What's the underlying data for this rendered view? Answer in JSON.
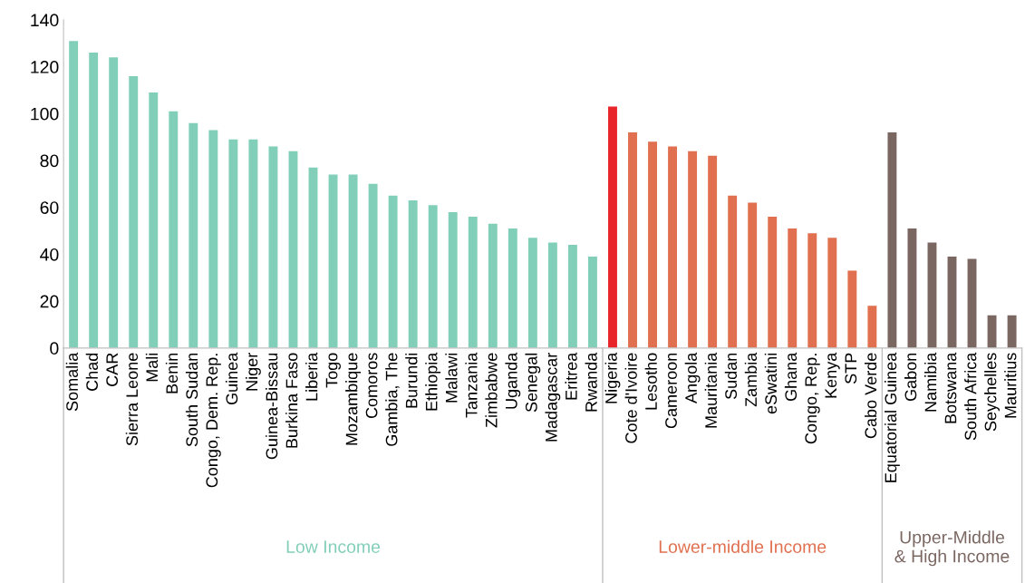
{
  "chart_data": {
    "type": "bar",
    "categories": [
      "Somalia",
      "Chad",
      "CAR",
      "Sierra Leone",
      "Mali",
      "Benin",
      "South Sudan",
      "Congo, Dem. Rep.",
      "Guinea",
      "Niger",
      "Guinea-Bissau",
      "Burkina Faso",
      "Liberia",
      "Togo",
      "Mozambique",
      "Comoros",
      "Gambia, The",
      "Burundi",
      "Ethiopia",
      "Malawi",
      "Tanzania",
      "Zimbabwe",
      "Uganda",
      "Senegal",
      "Madagascar",
      "Eritrea",
      "Rwanda",
      "Nigeria",
      "Cote d'Ivoire",
      "Lesotho",
      "Cameroon",
      "Angola",
      "Mauritania",
      "Sudan",
      "Zambia",
      "eSwatini",
      "Ghana",
      "Congo, Rep.",
      "Kenya",
      "STP",
      "Cabo Verde",
      "Equatorial Guinea",
      "Gabon",
      "Namibia",
      "Botswana",
      "South Africa",
      "Seychelles",
      "Mauritius"
    ],
    "series": [
      {
        "name": "Low Income",
        "color": "#82cfb9",
        "values": [
          131,
          126,
          124,
          116,
          109,
          101,
          96,
          93,
          89,
          89,
          86,
          84,
          77,
          74,
          74,
          70,
          65,
          63,
          61,
          58,
          56,
          53,
          51,
          47,
          45,
          44,
          39,
          null,
          null,
          null,
          null,
          null,
          null,
          null,
          null,
          null,
          null,
          null,
          null,
          null,
          null,
          null,
          null,
          null,
          null,
          null,
          null,
          null
        ]
      },
      {
        "name": "Lower-middle Income",
        "colors": [
          null,
          null,
          null,
          null,
          null,
          null,
          null,
          null,
          null,
          null,
          null,
          null,
          null,
          null,
          null,
          null,
          null,
          null,
          null,
          null,
          null,
          null,
          null,
          null,
          null,
          null,
          null,
          "#e8262a",
          "#e0704f",
          "#e0704f",
          "#e0704f",
          "#e0704f",
          "#e0704f",
          "#e0704f",
          "#e0704f",
          "#e0704f",
          "#e0704f",
          "#e0704f",
          "#e0704f",
          "#e0704f",
          "#e0704f",
          null,
          null,
          null,
          null,
          null,
          null,
          null
        ],
        "color": "#e0704f",
        "values": [
          null,
          null,
          null,
          null,
          null,
          null,
          null,
          null,
          null,
          null,
          null,
          null,
          null,
          null,
          null,
          null,
          null,
          null,
          null,
          null,
          null,
          null,
          null,
          null,
          null,
          null,
          null,
          103,
          92,
          88,
          86,
          84,
          82,
          65,
          62,
          56,
          51,
          49,
          47,
          33,
          18,
          null,
          null,
          null,
          null,
          null,
          null,
          null
        ]
      },
      {
        "name": "Upper-Middle\n& High Income",
        "color": "#7b6762",
        "values": [
          null,
          null,
          null,
          null,
          null,
          null,
          null,
          null,
          null,
          null,
          null,
          null,
          null,
          null,
          null,
          null,
          null,
          null,
          null,
          null,
          null,
          null,
          null,
          null,
          null,
          null,
          null,
          null,
          null,
          null,
          null,
          null,
          null,
          null,
          null,
          null,
          null,
          null,
          null,
          null,
          null,
          92,
          51,
          45,
          39,
          38,
          14,
          14
        ]
      }
    ],
    "ylim": [
      0,
      140
    ],
    "yticks": [
      0,
      20,
      40,
      60,
      80,
      100,
      120,
      140
    ],
    "grid": false,
    "legend": false
  }
}
